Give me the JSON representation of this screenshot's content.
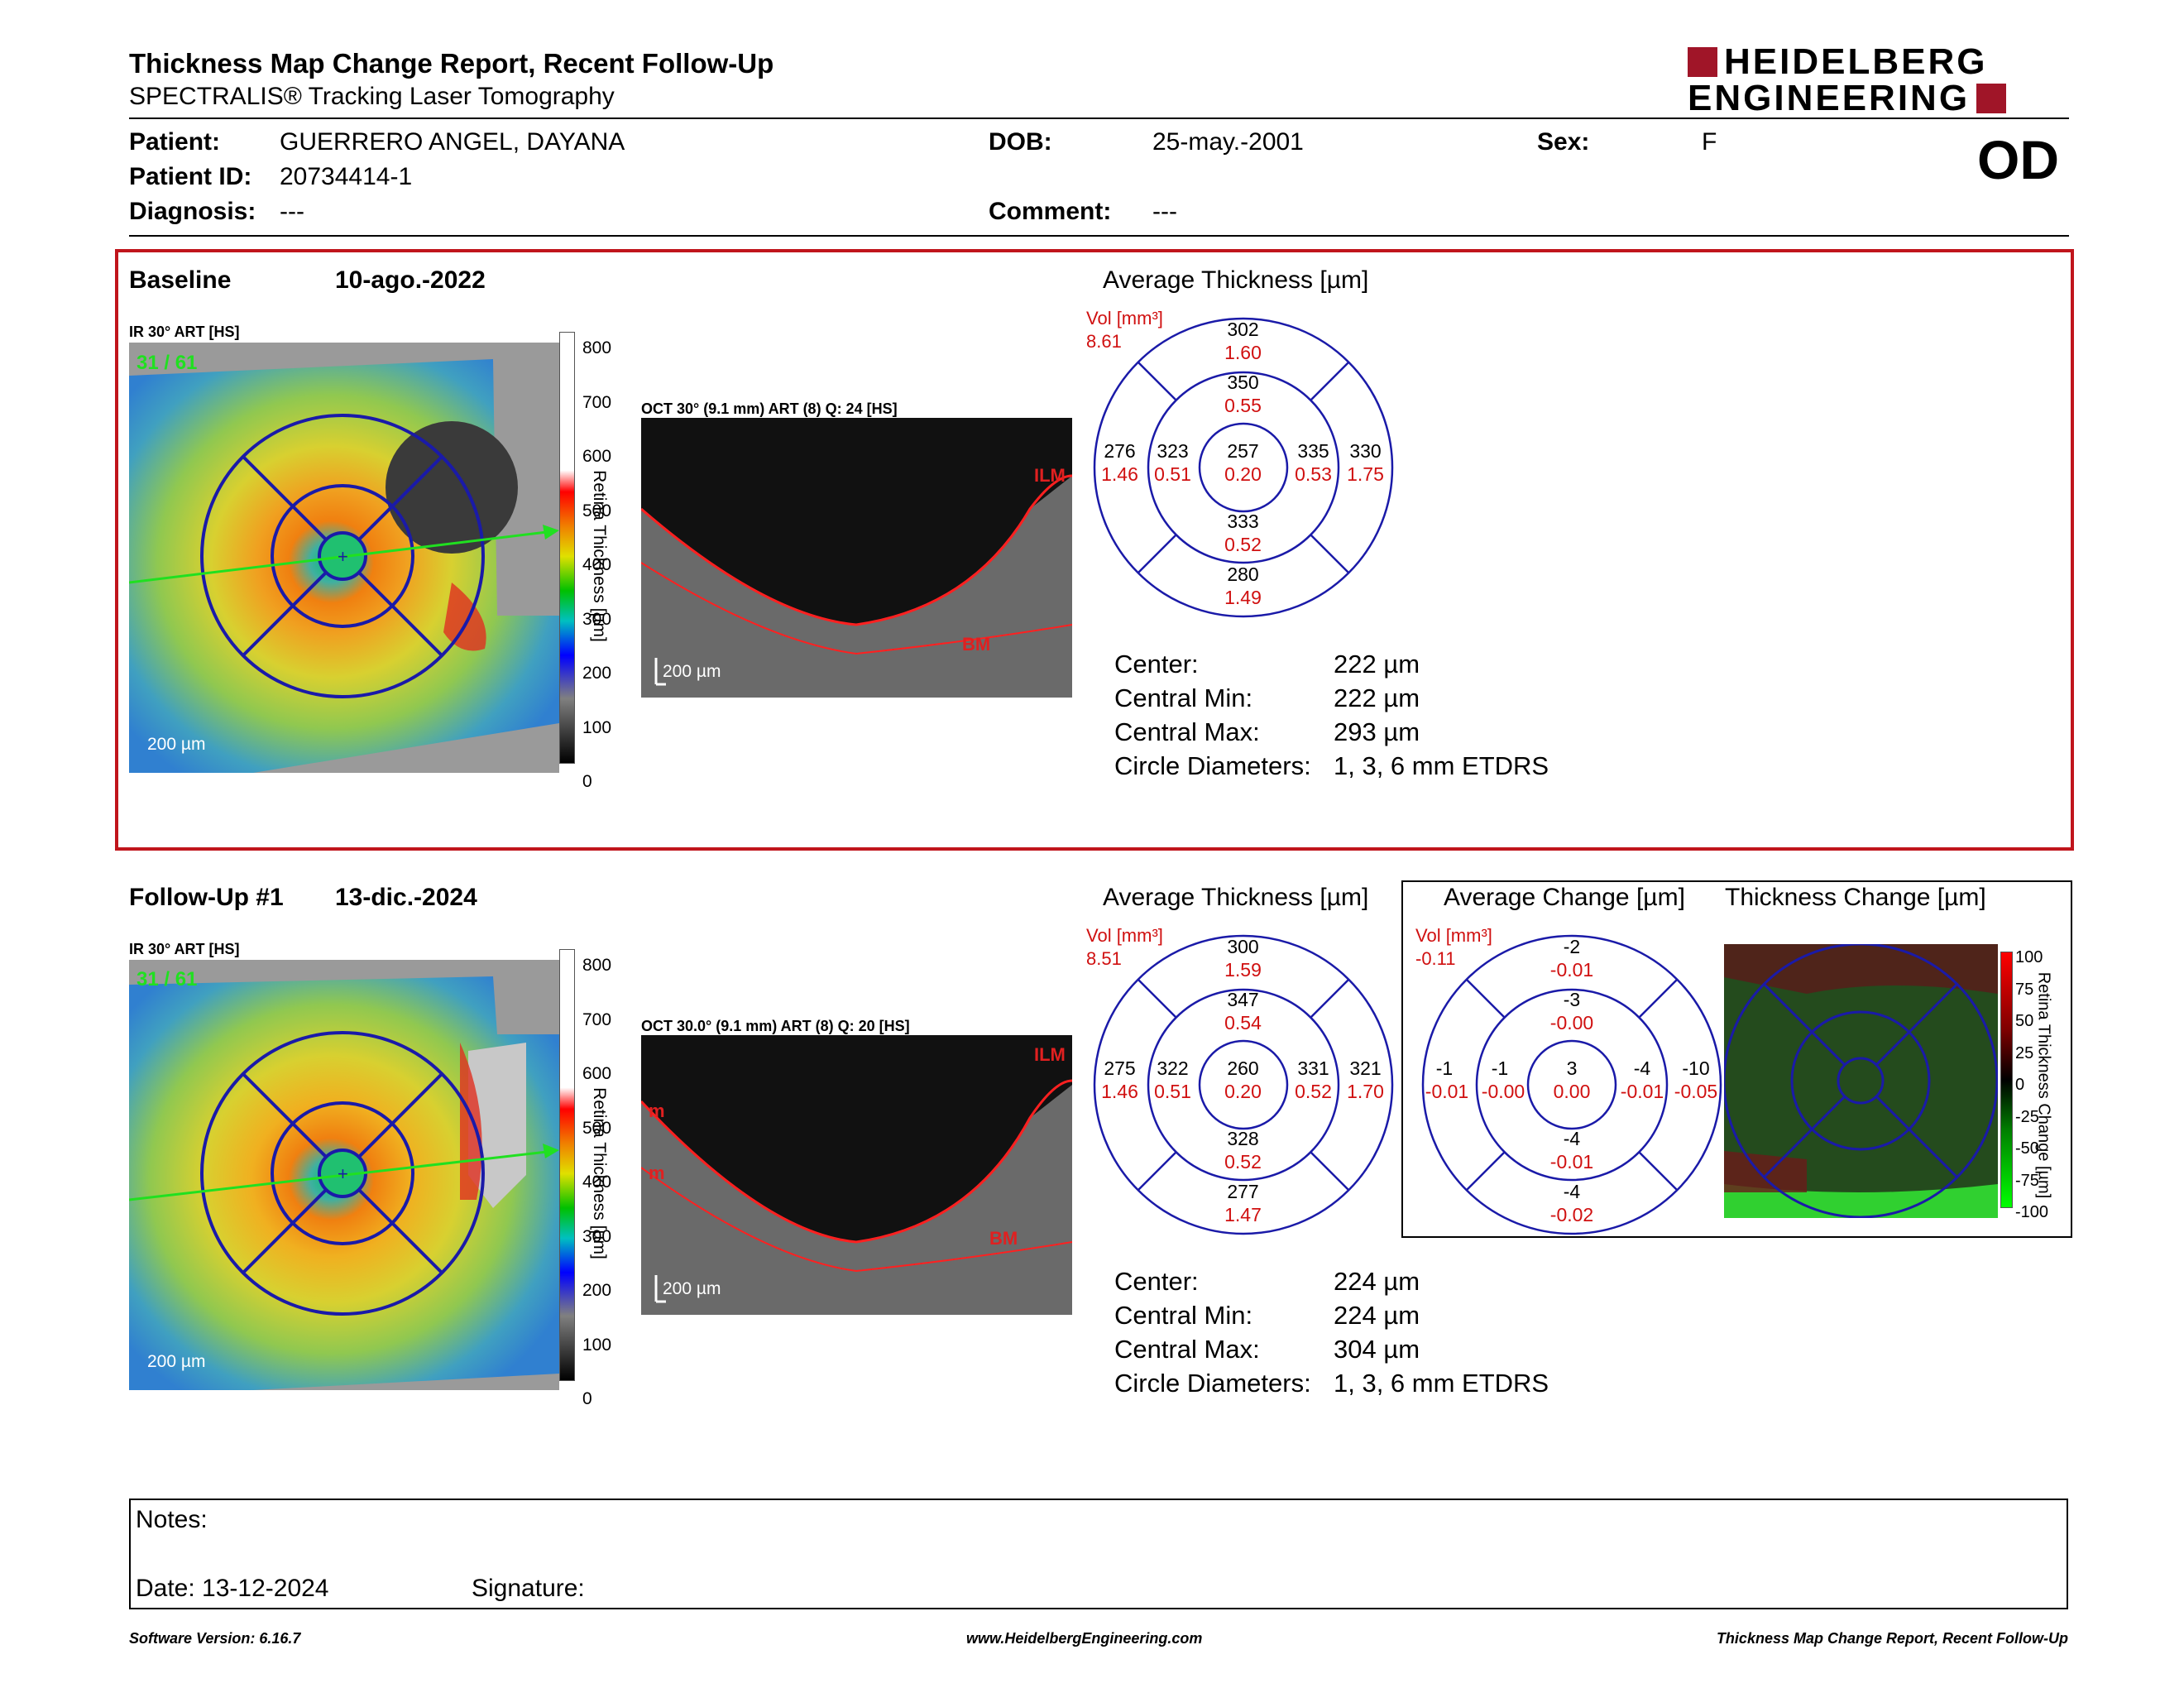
{
  "header": {
    "title": "Thickness Map Change Report, Recent Follow-Up",
    "subtitle": "SPECTRALIS® Tracking Laser Tomography",
    "logo_line1": "HEIDELBERG",
    "logo_line2": "ENGINEERING",
    "logo_color": "#a01528",
    "eye": "OD"
  },
  "patient": {
    "patient_label": "Patient:",
    "patient_value": "GUERRERO ANGEL, DAYANA",
    "id_label": "Patient ID:",
    "id_value": "20734414-1",
    "diagnosis_label": "Diagnosis:",
    "diagnosis_value": "---",
    "dob_label": "DOB:",
    "dob_value": "25-may.-2001",
    "comment_label": "Comment:",
    "comment_value": "---",
    "sex_label": "Sex:",
    "sex_value": "F"
  },
  "baseline": {
    "label": "Baseline",
    "date": "10-ago.-2022",
    "ir_label": "IR 30° ART [HS]",
    "frames": "31 / 61",
    "scalebar": "200 µm",
    "colorbar_ticks": [
      "800",
      "700",
      "600",
      "500",
      "400",
      "300",
      "200",
      "100",
      "0"
    ],
    "colorbar_title": "Retina Thickness [µm]",
    "oct_label": "OCT 30° (9.1 mm) ART (8) Q: 24 [HS]",
    "oct_scalebar": "200 µm",
    "oct_ilm": "ILM",
    "oct_bm": "BM",
    "avg_title": "Average Thickness [µm]",
    "vol_label": "Vol [mm³]",
    "vol_value": "8.61",
    "etdrs": {
      "outer_top": [
        "302",
        "1.60"
      ],
      "inner_top": [
        "350",
        "0.55"
      ],
      "outer_left": [
        "276",
        "1.46"
      ],
      "inner_left": [
        "323",
        "0.51"
      ],
      "center": [
        "257",
        "0.20"
      ],
      "inner_right": [
        "335",
        "0.53"
      ],
      "outer_right": [
        "330",
        "1.75"
      ],
      "inner_bottom": [
        "333",
        "0.52"
      ],
      "outer_bottom": [
        "280",
        "1.49"
      ]
    },
    "stats": {
      "center_label": "Center:",
      "center_value": "222 µm",
      "min_label": "Central Min:",
      "min_value": "222 µm",
      "max_label": "Central Max:",
      "max_value": "293 µm",
      "diam_label": "Circle Diameters:",
      "diam_value": "1, 3, 6 mm ETDRS"
    }
  },
  "followup": {
    "label": "Follow-Up #1",
    "date": "13-dic.-2024",
    "ir_label": "IR 30° ART [HS]",
    "frames": "31 / 61",
    "scalebar": "200 µm",
    "colorbar_ticks": [
      "800",
      "700",
      "600",
      "500",
      "400",
      "300",
      "200",
      "100",
      "0"
    ],
    "colorbar_title": "Retina Thickness [µm]",
    "oct_label": "OCT 30.0° (9.1 mm) ART (8) Q: 20 [HS]",
    "oct_scalebar": "200 µm",
    "oct_ilm": "ILM",
    "oct_bm": "BM",
    "oct_marker": "m",
    "avg_title": "Average Thickness [µm]",
    "vol_label": "Vol [mm³]",
    "vol_value": "8.51",
    "etdrs": {
      "outer_top": [
        "300",
        "1.59"
      ],
      "inner_top": [
        "347",
        "0.54"
      ],
      "outer_left": [
        "275",
        "1.46"
      ],
      "inner_left": [
        "322",
        "0.51"
      ],
      "center": [
        "260",
        "0.20"
      ],
      "inner_right": [
        "331",
        "0.52"
      ],
      "outer_right": [
        "321",
        "1.70"
      ],
      "inner_bottom": [
        "328",
        "0.52"
      ],
      "outer_bottom": [
        "277",
        "1.47"
      ]
    },
    "change_title": "Average Change [µm]",
    "change_vol_label": "Vol [mm³]",
    "change_vol_value": "-0.11",
    "change": {
      "outer_top": [
        "-2",
        "-0.01"
      ],
      "inner_top": [
        "-3",
        "-0.00"
      ],
      "outer_left": [
        "-1",
        "-0.01"
      ],
      "inner_left": [
        "-1",
        "-0.00"
      ],
      "center": [
        "3",
        "0.00"
      ],
      "inner_right": [
        "-4",
        "-0.01"
      ],
      "outer_right": [
        "-10",
        "-0.05"
      ],
      "inner_bottom": [
        "-4",
        "-0.01"
      ],
      "outer_bottom": [
        "-4",
        "-0.02"
      ]
    },
    "thickness_change_title": "Thickness Change [µm]",
    "change_ticks": [
      "100",
      "75",
      "50",
      "25",
      "0",
      "-25",
      "-50",
      "-75",
      "-100"
    ],
    "change_bar_title": "Retina Thickness Change [µm]",
    "stats": {
      "center_label": "Center:",
      "center_value": "224 µm",
      "min_label": "Central Min:",
      "min_value": "224 µm",
      "max_label": "Central Max:",
      "max_value": "304 µm",
      "diam_label": "Circle Diameters:",
      "diam_value": "1, 3, 6 mm ETDRS"
    }
  },
  "notes": {
    "notes_label": "Notes:",
    "date_label": "Date: 13-12-2024",
    "signature_label": "Signature:"
  },
  "footer": {
    "version": "Software Version: 6.16.7",
    "website": "www.HeidelbergEngineering.com",
    "report": "Thickness Map Change Report, Recent Follow-Up"
  },
  "colors": {
    "panel_border": "#c0151c",
    "etdrs_circle": "#1a1aa8",
    "volume_text": "#d01010"
  }
}
